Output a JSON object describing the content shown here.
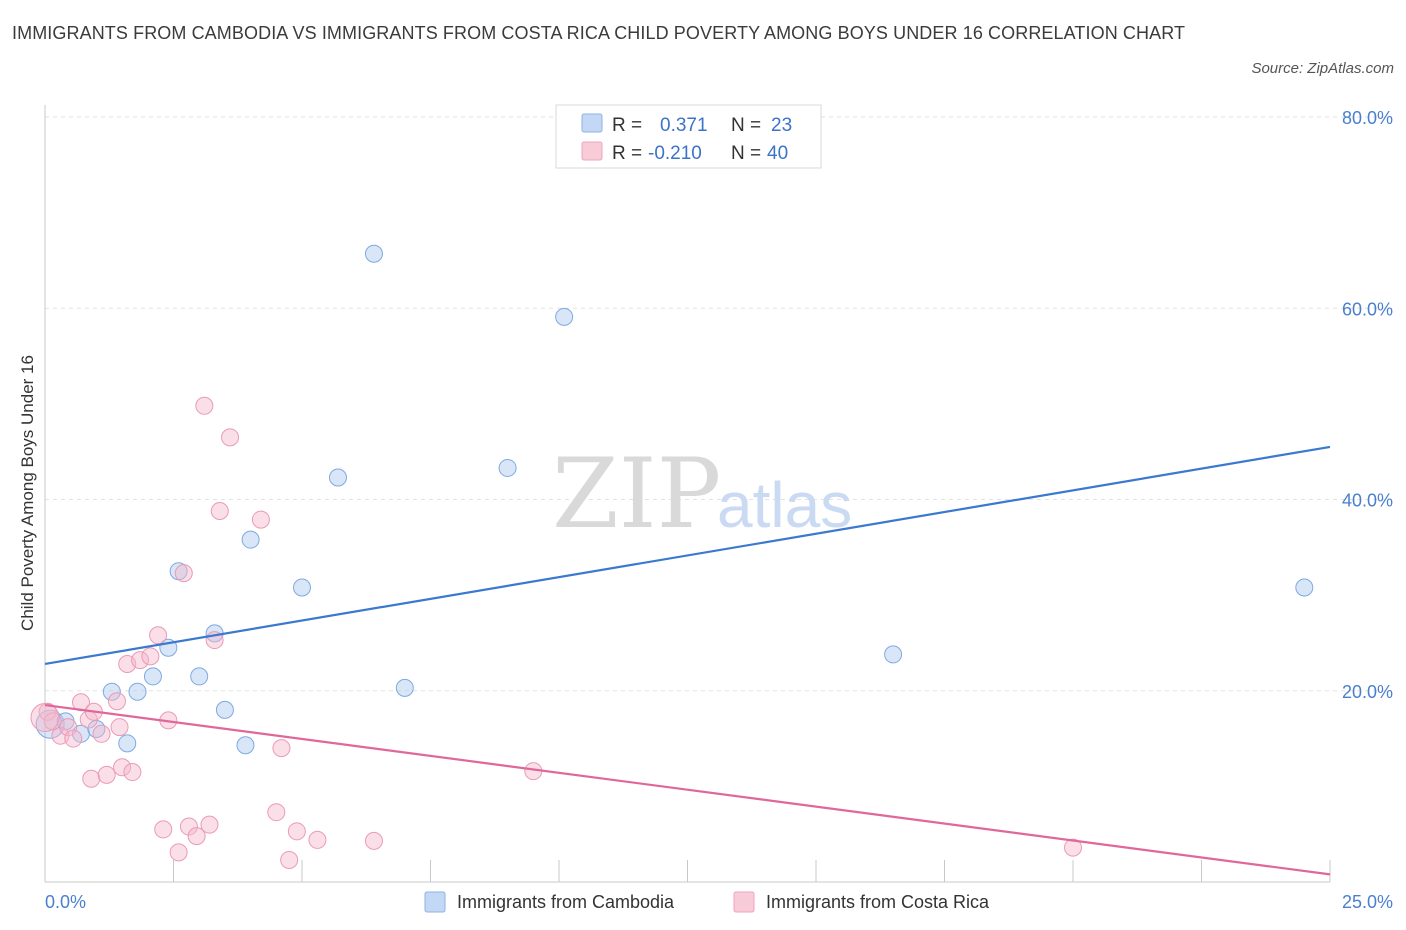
{
  "header": {
    "title": "IMMIGRANTS FROM CAMBODIA VS IMMIGRANTS FROM COSTA RICA CHILD POVERTY AMONG BOYS UNDER 16 CORRELATION CHART",
    "source": "Source: ZipAtlas.com"
  },
  "watermark": {
    "zip": "ZIP",
    "atlas": "atlas"
  },
  "legend": {
    "r_label": "R =",
    "n_label": "N =",
    "series": [
      {
        "r": "0.371",
        "n": "23"
      },
      {
        "r": "-0.210",
        "n": "40"
      }
    ]
  },
  "bottom_legend": [
    "Immigrants from Cambodia",
    "Immigrants from Costa Rica"
  ],
  "chart_data": {
    "type": "scatter",
    "title": "IMMIGRANTS FROM CAMBODIA VS IMMIGRANTS FROM COSTA RICA CHILD POVERTY AMONG BOYS UNDER 16 CORRELATION CHART",
    "xlabel": "",
    "ylabel": "Child Poverty Among Boys Under 16",
    "xlim": [
      0,
      25
    ],
    "ylim": [
      0,
      80
    ],
    "x_ticks": [
      "0.0%",
      "25.0%"
    ],
    "y_ticks": [
      {
        "value": 20,
        "label": "20.0%"
      },
      {
        "value": 40,
        "label": "40.0%"
      },
      {
        "value": 60,
        "label": "60.0%"
      },
      {
        "value": 80,
        "label": "80.0%"
      }
    ],
    "grid": true,
    "legend_position": "top-center",
    "colors": {
      "cambodia": "#aac8f0",
      "cambodia_line": "#3b78d0",
      "costa_rica": "#f4b8cb",
      "costa_rica_line": "#e0679a"
    },
    "series": [
      {
        "name": "Immigrants from Cambodia",
        "r": 0.371,
        "n": 23,
        "trend": [
          [
            0,
            22.8
          ],
          [
            25,
            45.5
          ]
        ],
        "points": [
          [
            0.1,
            16.5
          ],
          [
            0.4,
            16.8
          ],
          [
            0.7,
            15.5
          ],
          [
            1.0,
            16.0
          ],
          [
            1.3,
            19.9
          ],
          [
            1.6,
            14.5
          ],
          [
            1.8,
            19.9
          ],
          [
            2.1,
            21.5
          ],
          [
            2.6,
            32.5
          ],
          [
            2.4,
            24.5
          ],
          [
            3.0,
            21.5
          ],
          [
            3.3,
            26.0
          ],
          [
            3.5,
            18.0
          ],
          [
            3.9,
            14.3
          ],
          [
            4.0,
            35.8
          ],
          [
            5.0,
            30.8
          ],
          [
            5.7,
            42.3
          ],
          [
            6.4,
            65.7
          ],
          [
            7.0,
            20.3
          ],
          [
            9.0,
            43.3
          ],
          [
            10.1,
            59.1
          ],
          [
            16.5,
            23.8
          ],
          [
            24.5,
            30.8
          ]
        ]
      },
      {
        "name": "Immigrants from Costa Rica",
        "r": -0.21,
        "n": 40,
        "trend": [
          [
            0,
            18.5
          ],
          [
            25,
            0.8
          ]
        ],
        "points": [
          [
            0.05,
            17.8
          ],
          [
            0.15,
            16.8
          ],
          [
            0.3,
            15.3
          ],
          [
            0.45,
            16.2
          ],
          [
            0.55,
            15.0
          ],
          [
            0.7,
            18.8
          ],
          [
            0.85,
            17.0
          ],
          [
            0.95,
            17.8
          ],
          [
            1.1,
            15.5
          ],
          [
            0.9,
            10.8
          ],
          [
            1.2,
            11.2
          ],
          [
            1.4,
            18.9
          ],
          [
            1.45,
            16.2
          ],
          [
            1.5,
            12.0
          ],
          [
            1.6,
            22.8
          ],
          [
            1.7,
            11.5
          ],
          [
            1.85,
            23.2
          ],
          [
            2.05,
            23.6
          ],
          [
            2.2,
            25.8
          ],
          [
            2.3,
            5.5
          ],
          [
            2.4,
            16.9
          ],
          [
            2.6,
            3.1
          ],
          [
            2.7,
            32.3
          ],
          [
            2.8,
            5.8
          ],
          [
            2.95,
            4.8
          ],
          [
            3.1,
            49.8
          ],
          [
            3.2,
            6.0
          ],
          [
            3.3,
            25.3
          ],
          [
            3.4,
            38.8
          ],
          [
            3.6,
            46.5
          ],
          [
            4.2,
            37.9
          ],
          [
            4.5,
            7.3
          ],
          [
            4.6,
            14.0
          ],
          [
            4.75,
            2.3
          ],
          [
            4.9,
            5.3
          ],
          [
            5.3,
            4.4
          ],
          [
            6.4,
            4.3
          ],
          [
            9.5,
            11.6
          ],
          [
            20.0,
            3.6
          ],
          [
            0.0,
            17.2
          ]
        ]
      }
    ]
  }
}
